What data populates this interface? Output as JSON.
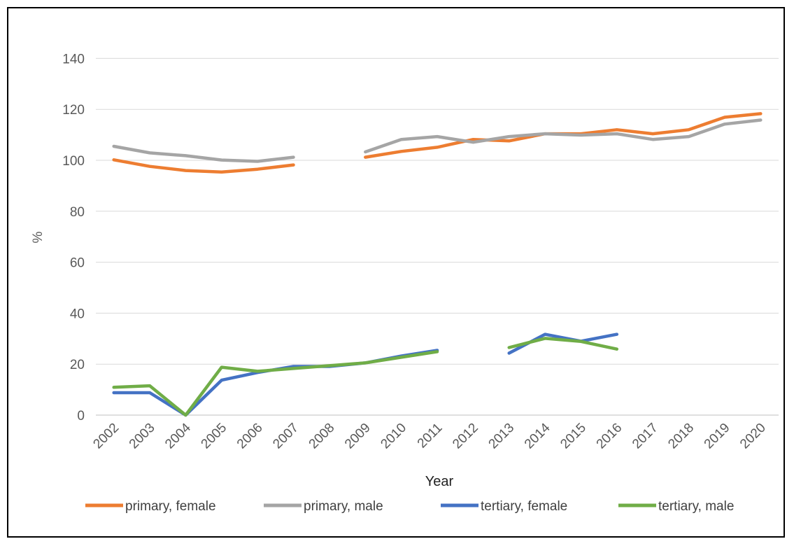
{
  "chart_data": {
    "type": "line",
    "title": "",
    "xlabel": "Year",
    "ylabel": "%",
    "ylim": [
      0,
      150
    ],
    "yticks": [
      0,
      20,
      40,
      60,
      80,
      100,
      120,
      140
    ],
    "grid": true,
    "legend_position": "bottom",
    "categories": [
      "2002",
      "2003",
      "2004",
      "2005",
      "2006",
      "2007",
      "2008",
      "2009",
      "2010",
      "2011",
      "2012",
      "2013",
      "2014",
      "2015",
      "2016",
      "2017",
      "2018",
      "2019",
      "2020"
    ],
    "series": [
      {
        "name": "primary, female",
        "color": "#ED7D31",
        "values": [
          100.2,
          97.6,
          96.0,
          95.4,
          96.5,
          98.2,
          null,
          101.2,
          103.5,
          105.1,
          108.2,
          107.6,
          110.4,
          110.4,
          112.0,
          110.4,
          112.0,
          116.9,
          118.3
        ]
      },
      {
        "name": "primary, male",
        "color": "#A5A5A5",
        "values": [
          105.5,
          102.9,
          101.8,
          100.1,
          99.6,
          101.2,
          null,
          103.3,
          108.2,
          109.3,
          107.1,
          109.3,
          110.4,
          109.9,
          110.4,
          108.2,
          109.3,
          114.2,
          115.8
        ]
      },
      {
        "name": "tertiary, female",
        "color": "#4472C4",
        "values": [
          8.8,
          8.8,
          0.0,
          13.7,
          16.7,
          19.1,
          19.1,
          20.5,
          23.2,
          25.4,
          null,
          24.3,
          31.7,
          29.0,
          31.7,
          null,
          null,
          null,
          null
        ]
      },
      {
        "name": "tertiary, male",
        "color": "#70AD47",
        "values": [
          10.9,
          11.5,
          0.0,
          18.8,
          17.2,
          18.3,
          19.4,
          20.5,
          22.7,
          24.9,
          null,
          26.5,
          30.1,
          28.9,
          25.9,
          null,
          null,
          null,
          null
        ]
      }
    ]
  }
}
